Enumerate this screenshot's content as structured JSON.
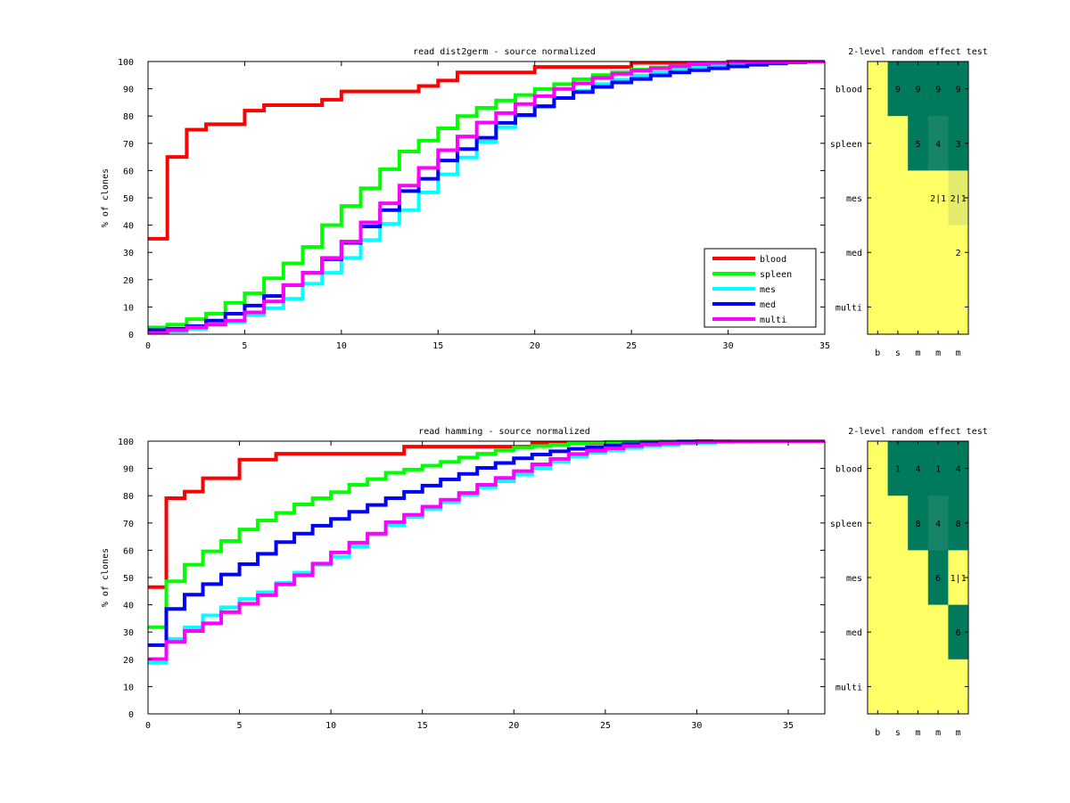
{
  "colors": {
    "blood": "#ff0000",
    "spleen": "#00ff00",
    "mes": "#00ffff",
    "med": "#0000ff",
    "multi": "#ff00ff",
    "dark": "#007a5c",
    "dark2": "#17846a",
    "yellow": "#ffff66",
    "light": "#e4eb6c"
  },
  "chart_data": [
    {
      "type": "line",
      "title": "read  dist2germ - source normalized",
      "xlabel": "",
      "ylabel": "% of clones",
      "xlim": [
        0,
        35
      ],
      "ylim": [
        0,
        100
      ],
      "xticks": [
        0,
        5,
        10,
        15,
        20,
        25,
        30,
        35
      ],
      "yticks": [
        0,
        10,
        20,
        30,
        40,
        50,
        60,
        70,
        80,
        90,
        100
      ],
      "step": true,
      "legend": "bottom-right",
      "series": [
        {
          "name": "blood",
          "color": "blood",
          "values": [
            35,
            65,
            75,
            77,
            77,
            82,
            84,
            84,
            84,
            86,
            89,
            89,
            89,
            89,
            91,
            93,
            96,
            96,
            96,
            96,
            98,
            98,
            98,
            98,
            98,
            99.5,
            99.5,
            99.5,
            99.5,
            99.5,
            100,
            100,
            100,
            100,
            100,
            100
          ]
        },
        {
          "name": "spleen",
          "color": "spleen",
          "values": [
            2.5,
            3.5,
            5.5,
            7.5,
            11.5,
            15,
            20.5,
            26,
            32,
            40,
            47,
            53.5,
            60.5,
            67,
            71,
            75.5,
            80,
            83,
            85.7,
            87.7,
            89.9,
            91.7,
            93.5,
            95,
            96,
            97,
            97.8,
            98.4,
            98.9,
            99.3,
            99.6,
            99.8,
            100,
            100,
            100,
            100
          ]
        },
        {
          "name": "mes",
          "color": "mes",
          "values": [
            0.5,
            1,
            2,
            3.5,
            4.5,
            7,
            9.5,
            13,
            18.5,
            22.5,
            28,
            34.5,
            40.5,
            45.5,
            52,
            58.6,
            64.8,
            70.6,
            75.9,
            80,
            83.3,
            86.6,
            89.3,
            91.7,
            93.3,
            94.8,
            96,
            97,
            97.8,
            98.5,
            99,
            99.4,
            99.7,
            100,
            100,
            100
          ]
        },
        {
          "name": "med",
          "color": "med",
          "values": [
            1.5,
            2,
            3,
            5,
            7.5,
            10.5,
            14,
            18,
            22.5,
            27.5,
            33.5,
            39.5,
            45.5,
            52.5,
            57,
            63.7,
            67.9,
            72,
            77.5,
            80.4,
            83.6,
            86.6,
            88.8,
            90.7,
            92.3,
            93.6,
            94.9,
            96,
            96.8,
            97.5,
            98.2,
            98.8,
            99.3,
            99.7,
            100,
            100
          ]
        },
        {
          "name": "multi",
          "color": "multi",
          "values": [
            0.5,
            1.5,
            2.5,
            3.5,
            5,
            8,
            12,
            18,
            22.5,
            28,
            34,
            41,
            48,
            54.5,
            61,
            67.5,
            72.5,
            77.6,
            81.1,
            84.4,
            87.3,
            89.9,
            92,
            94,
            95.5,
            96.7,
            97.5,
            98.3,
            99,
            99.5,
            99.8,
            100,
            100,
            100,
            100,
            100
          ]
        }
      ]
    },
    {
      "type": "line",
      "title": "read hamming - source normalized",
      "xlabel": "",
      "ylabel": "% of clones",
      "xlim": [
        0,
        37
      ],
      "ylim": [
        0,
        100
      ],
      "xticks": [
        0,
        5,
        10,
        15,
        20,
        25,
        30,
        35
      ],
      "yticks": [
        0,
        10,
        20,
        30,
        40,
        50,
        60,
        70,
        80,
        90,
        100
      ],
      "step": true,
      "legend": "none",
      "series": [
        {
          "name": "blood",
          "color": "blood",
          "values": [
            46.5,
            79.1,
            81.5,
            86.4,
            86.4,
            93.2,
            93.2,
            95.4,
            95.4,
            95.4,
            95.4,
            95.4,
            95.4,
            95.4,
            98,
            98,
            98,
            98,
            98,
            98,
            98,
            99.3,
            99.3,
            99.3,
            99.3,
            99.3,
            99.3,
            99.3,
            99.3,
            99.3,
            100,
            100,
            100,
            100,
            100,
            100,
            100
          ]
        },
        {
          "name": "spleen",
          "color": "spleen",
          "values": [
            31.8,
            48.6,
            54.7,
            59.6,
            63.4,
            67.6,
            70.9,
            73.7,
            76.8,
            79.1,
            81.3,
            84,
            86.1,
            88.4,
            89.6,
            91,
            92.4,
            94,
            95.4,
            96.7,
            97.6,
            98.2,
            98.7,
            99.2,
            99.5,
            99.7,
            99.8,
            99.9,
            100,
            100,
            100,
            100,
            100,
            100,
            100,
            100,
            100
          ]
        },
        {
          "name": "mes",
          "color": "mes",
          "values": [
            18.7,
            27.5,
            31.7,
            36.1,
            39.1,
            42.1,
            44.6,
            48,
            51.8,
            54.7,
            57.6,
            61.4,
            65.8,
            69.3,
            72.2,
            75.2,
            77.6,
            80.4,
            83.1,
            85.3,
            87.7,
            90.2,
            92.4,
            94.3,
            95.8,
            96.6,
            97.5,
            98.2,
            98.7,
            99.1,
            99.4,
            99.6,
            99.8,
            99.9,
            100,
            100,
            100
          ]
        },
        {
          "name": "med",
          "color": "med",
          "values": [
            25.2,
            38.5,
            43.7,
            47.6,
            51.1,
            54.9,
            58.7,
            63,
            66.1,
            69,
            71.5,
            74.1,
            76.6,
            79.1,
            81.4,
            83.7,
            86,
            88,
            90.2,
            92,
            93.7,
            95.1,
            96.3,
            97.2,
            97.8,
            98.4,
            98.9,
            99.3,
            99.6,
            99.8,
            100,
            100,
            100,
            100,
            100,
            100,
            100
          ]
        },
        {
          "name": "multi",
          "color": "multi",
          "values": [
            20.1,
            26.4,
            30.4,
            33.2,
            37.3,
            40.4,
            43.5,
            47.5,
            50.8,
            55.1,
            59.2,
            62.8,
            66.1,
            70.3,
            73,
            76,
            78.5,
            81,
            84,
            86.5,
            89,
            91.5,
            93.5,
            95.3,
            96.5,
            97.4,
            98.2,
            98.8,
            99.2,
            99.5,
            99.7,
            99.9,
            100,
            100,
            100,
            100,
            100
          ]
        }
      ]
    },
    {
      "type": "heatmap",
      "title": "2-level random effect test",
      "rows": [
        "blood",
        "spleen",
        "mes",
        "med",
        "multi"
      ],
      "cols": [
        "b",
        "s",
        "m",
        "m",
        "m"
      ],
      "cells": [
        [
          {
            "fill": "yellow",
            "text": ""
          },
          {
            "fill": "dark",
            "text": "9"
          },
          {
            "fill": "dark",
            "text": "9"
          },
          {
            "fill": "dark",
            "text": "9"
          },
          {
            "fill": "dark",
            "text": "9"
          }
        ],
        [
          {
            "fill": "yellow",
            "text": ""
          },
          {
            "fill": "yellow",
            "text": ""
          },
          {
            "fill": "dark",
            "text": "5"
          },
          {
            "fill": "dark2",
            "text": "4"
          },
          {
            "fill": "dark",
            "text": "3"
          }
        ],
        [
          {
            "fill": "yellow",
            "text": ""
          },
          {
            "fill": "yellow",
            "text": ""
          },
          {
            "fill": "yellow",
            "text": ""
          },
          {
            "fill": "yellow",
            "text": "2|1"
          },
          {
            "fill": "light",
            "text": "2|1"
          }
        ],
        [
          {
            "fill": "yellow",
            "text": ""
          },
          {
            "fill": "yellow",
            "text": ""
          },
          {
            "fill": "yellow",
            "text": ""
          },
          {
            "fill": "yellow",
            "text": ""
          },
          {
            "fill": "yellow",
            "text": "2"
          }
        ],
        [
          {
            "fill": "yellow",
            "text": ""
          },
          {
            "fill": "yellow",
            "text": ""
          },
          {
            "fill": "yellow",
            "text": ""
          },
          {
            "fill": "yellow",
            "text": ""
          },
          {
            "fill": "yellow",
            "text": ""
          }
        ]
      ]
    },
    {
      "type": "heatmap",
      "title": "2-level random effect test",
      "rows": [
        "blood",
        "spleen",
        "mes",
        "med",
        "multi"
      ],
      "cols": [
        "b",
        "s",
        "m",
        "m",
        "m"
      ],
      "cells": [
        [
          {
            "fill": "yellow",
            "text": ""
          },
          {
            "fill": "dark",
            "text": "1"
          },
          {
            "fill": "dark",
            "text": "4"
          },
          {
            "fill": "dark",
            "text": "1"
          },
          {
            "fill": "dark",
            "text": "4"
          }
        ],
        [
          {
            "fill": "yellow",
            "text": ""
          },
          {
            "fill": "yellow",
            "text": ""
          },
          {
            "fill": "dark",
            "text": "8"
          },
          {
            "fill": "dark2",
            "text": "4"
          },
          {
            "fill": "dark",
            "text": "8"
          }
        ],
        [
          {
            "fill": "yellow",
            "text": ""
          },
          {
            "fill": "yellow",
            "text": ""
          },
          {
            "fill": "yellow",
            "text": ""
          },
          {
            "fill": "dark",
            "text": "6"
          },
          {
            "fill": "yellow",
            "text": "1|1"
          }
        ],
        [
          {
            "fill": "yellow",
            "text": ""
          },
          {
            "fill": "yellow",
            "text": ""
          },
          {
            "fill": "yellow",
            "text": ""
          },
          {
            "fill": "yellow",
            "text": ""
          },
          {
            "fill": "dark",
            "text": "6"
          }
        ],
        [
          {
            "fill": "yellow",
            "text": ""
          },
          {
            "fill": "yellow",
            "text": ""
          },
          {
            "fill": "yellow",
            "text": ""
          },
          {
            "fill": "yellow",
            "text": ""
          },
          {
            "fill": "yellow",
            "text": ""
          }
        ]
      ]
    }
  ]
}
